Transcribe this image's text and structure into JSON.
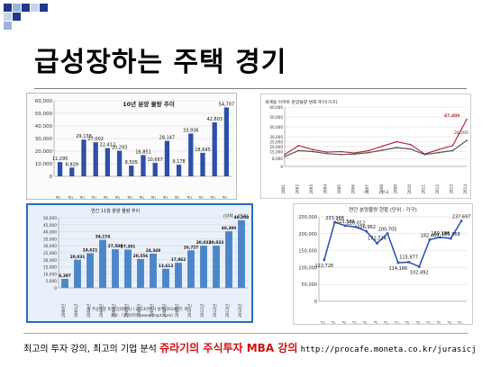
{
  "slide": {
    "title": "급성장하는 주택 경기",
    "footer_left": "최고의 투자 강의, 최고의 기업 분석",
    "footer_brand": "쥬라기의 주식투자 MBA 강의",
    "footer_link": "http://procafe.moneta.co.kr/jurasicj"
  },
  "colors": {
    "bar_blue": "#2e4fa8",
    "bar_light": "#4a86c8",
    "line_red": "#c0283a",
    "line_dark": "#555555",
    "line_blue": "#2f57b8"
  },
  "chart_data": [
    {
      "type": "bar",
      "title": "10년 분양 물량 추이",
      "categories": [
        "2000년",
        "2001년",
        "2002년",
        "2003년",
        "2004년",
        "2005년",
        "2006년",
        "2007년",
        "2008년",
        "2009년",
        "2010년",
        "2011년",
        "2012년",
        "2013년",
        "2014년"
      ],
      "values": [
        11295,
        6929,
        29138,
        27002,
        22412,
        20293,
        8505,
        16851,
        10667,
        28147,
        9178,
        33936,
        18645,
        42803,
        54707
      ],
      "value_labels": [
        "11,295",
        "6,929",
        "29,138",
        "27,002",
        "22,412",
        "20,293",
        "8,505",
        "16,851",
        "10,667",
        "28,147",
        "9,178",
        "33,936",
        "18,645",
        "42,803",
        "54,707"
      ],
      "ylim": [
        0,
        60000
      ],
      "yticks": [
        "0",
        "10,000",
        "20,000",
        "30,000",
        "40,000",
        "50,000",
        "60,000"
      ]
    },
    {
      "type": "line",
      "title": "세계동 아파트 분양물량 변화 추이(가구)",
      "categories": [
        "2001",
        "2002",
        "2003",
        "2004",
        "2005",
        "2006",
        "2007",
        "2008",
        "2009",
        "2010",
        "2011",
        "2012",
        "2013",
        "2014"
      ],
      "series": [
        {
          "values": [
            12000,
            21000,
            17000,
            14500,
            15000,
            13500,
            16000,
            20500,
            25000,
            22000,
            12500,
            17000,
            21000,
            47400
          ]
        },
        {
          "values": [
            10000,
            16000,
            15000,
            13000,
            12000,
            12500,
            14000,
            16500,
            19000,
            17500,
            12000,
            14000,
            16000,
            26200
          ]
        }
      ],
      "legend": [
        "--서",
        "--천국"
      ],
      "annotations": [
        "47,400",
        "26,200"
      ],
      "ylim": [
        0,
        60000
      ],
      "yticks": [
        "0",
        "8,000",
        "15,000",
        "20,000",
        "25,000",
        "30,000",
        "40,000",
        "50,000",
        "60,000"
      ]
    },
    {
      "type": "bar",
      "title": "연간 11월 분양 물량 추이",
      "unit": "(단위 : 가구)",
      "categories": [
        "2000년",
        "2001년",
        "2002년",
        "2003년",
        "2004년",
        "2005년",
        "2006년",
        "2007년",
        "2008년",
        "2009년",
        "2010년",
        "2011년",
        "2012년",
        "2013년",
        "2014년"
      ],
      "values": [
        6397,
        20031,
        24621,
        34174,
        27508,
        27301,
        20556,
        24349,
        13613,
        17862,
        26727,
        30032,
        30033,
        40300,
        48200
      ],
      "value_labels": [
        "6,397",
        "20,031",
        "24,621",
        "34,174",
        "27,508",
        "27,301",
        "20,556",
        "24,349",
        "13,613",
        "17,862",
        "26,727",
        "30,032",
        "30,033",
        "40,300",
        "48,200"
      ],
      "ylim": [
        0,
        50000
      ],
      "yticks": [
        "0",
        "5,000",
        "10,000",
        "15,000",
        "20,000",
        "25,000",
        "30,000",
        "35,000",
        "40,000",
        "45,000",
        "50,000"
      ],
      "notes": [
        "※ 주상복합 포함(임대제외) / 2013년까지 실적(2014년은 계",
        "자료 : 닥터아파트(www.drapt.com)"
      ]
    },
    {
      "type": "line",
      "title": "연간 분양물량 현황 (단위 : 가구)",
      "categories": [
        "2001년",
        "2002년",
        "2003년",
        "2004년",
        "2005년",
        "2006년",
        "2007년",
        "2008년",
        "2009년",
        "2010년",
        "2011년",
        "2012년",
        "2013년",
        "2014년"
      ],
      "values": [
        122726,
        233988,
        223589,
        220012,
        206962,
        171724,
        200705,
        114166,
        115977,
        102492,
        182469,
        189186,
        185968,
        237697
      ],
      "value_labels": [
        "122,726",
        "233,988",
        "223,589",
        "220,012",
        "206,962",
        "171,724",
        "200,705",
        "114,166",
        "115,977",
        "102,492",
        "182,469",
        "189,186",
        "185,968",
        "237,697"
      ],
      "ylim": [
        0,
        250000
      ],
      "yticks": [
        "0",
        "50,000",
        "100,000",
        "150,000",
        "200,000",
        "250,000"
      ]
    }
  ]
}
